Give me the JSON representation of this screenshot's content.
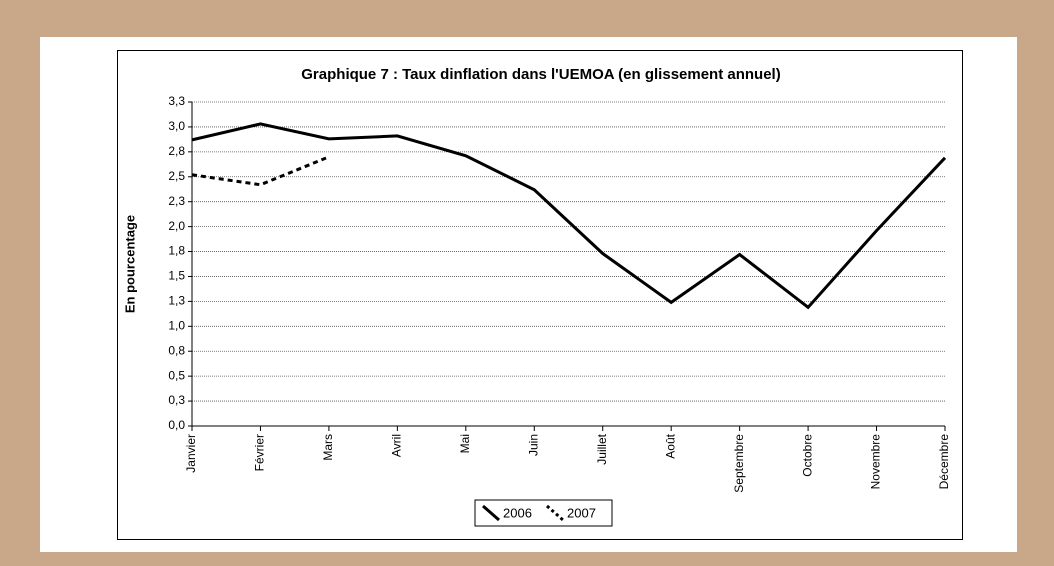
{
  "chart_data": {
    "type": "line",
    "title": "Graphique 7 : Taux dinflation dans l'UEMOA (en glissement annuel)",
    "y_label": "En pourcentage",
    "categories": [
      "Janvier",
      "Février",
      "Mars",
      "Avril",
      "Mai",
      "Juin",
      "Juillet",
      "Août",
      "Septembre",
      "Octobre",
      "Novembre",
      "Décembre"
    ],
    "series": [
      {
        "name": "2006",
        "color": "#000000",
        "dash": "solid",
        "values": [
          2.87,
          3.03,
          2.88,
          2.91,
          2.71,
          2.37,
          1.73,
          1.24,
          1.72,
          1.19,
          1.96,
          2.69
        ]
      },
      {
        "name": "2007",
        "color": "#000000",
        "dash": "dotted",
        "values": [
          2.52,
          2.42,
          2.7,
          null,
          null,
          null,
          null,
          null,
          null,
          null,
          null,
          null
        ]
      }
    ],
    "ylim": [
      0,
      3.25
    ],
    "yticks": [
      {
        "value": 0,
        "label": "0,0"
      },
      {
        "value": 0.25,
        "label": "0,3"
      },
      {
        "value": 0.5,
        "label": "0,5"
      },
      {
        "value": 0.75,
        "label": "0,8"
      },
      {
        "value": 1,
        "label": "1,0"
      },
      {
        "value": 1.25,
        "label": "1,3"
      },
      {
        "value": 1.5,
        "label": "1,5"
      },
      {
        "value": 1.75,
        "label": "1,8"
      },
      {
        "value": 2,
        "label": "2,0"
      },
      {
        "value": 2.25,
        "label": "2,3"
      },
      {
        "value": 2.5,
        "label": "2,5"
      },
      {
        "value": 2.75,
        "label": "2,8"
      },
      {
        "value": 3,
        "label": "3,0"
      },
      {
        "value": 3.25,
        "label": "3,3"
      }
    ],
    "grid": true,
    "legend": "bottom"
  }
}
